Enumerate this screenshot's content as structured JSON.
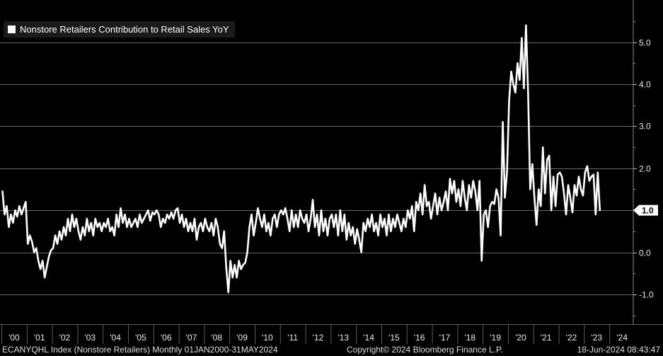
{
  "colors": {
    "background": "#000000",
    "line": "#ffffff",
    "grid": "#8a8a8a",
    "text": "#e8e8e8",
    "legend_bg": "#1a1a1a"
  },
  "footer": {
    "left": "ECANYQHL Index (Nonstore Retailers)  Monthly 01JAN2000-31MAY2024",
    "middle": "Copyright© 2024 Bloomberg Finance L.P.",
    "right": "18-Jun-2024 08:43:47"
  },
  "chart_data": {
    "type": "line",
    "title": "",
    "legend": [
      "Nonstore Retailers Contribution to Retail Sales YoY"
    ],
    "legend_position": "top-left",
    "xlabel": "",
    "ylabel": "",
    "ylim": [
      -1.5,
      6.0
    ],
    "y_ticks": [
      -1.0,
      0.0,
      1.0,
      2.0,
      3.0,
      4.0,
      5.0
    ],
    "y_tick_labels": [
      "-1.0",
      "0.0",
      "1.0",
      "2.0",
      "3.0",
      "4.0",
      "5.0"
    ],
    "x_tick_labels": [
      "'00",
      "'01",
      "'02",
      "'03",
      "'04",
      "'05",
      "'06",
      "'07",
      "'08",
      "'09",
      "'10",
      "'11",
      "'12",
      "'13",
      "'14",
      "'15",
      "'16",
      "'17",
      "'18",
      "'19",
      "'20",
      "'21",
      "'22",
      "'23",
      "'24"
    ],
    "x_start_year": 2000,
    "last_value_label": "1.0",
    "series": [
      {
        "name": "Nonstore Retailers Contribution to Retail Sales YoY",
        "start": "2000-01",
        "frequency": "monthly",
        "values": [
          1.45,
          0.9,
          1.1,
          0.6,
          0.9,
          0.7,
          1.0,
          0.85,
          1.1,
          0.9,
          1.05,
          1.2,
          0.2,
          0.4,
          0.25,
          0.0,
          0.1,
          -0.2,
          -0.4,
          -0.2,
          -0.6,
          -0.35,
          -0.1,
          0.05,
          0.1,
          0.4,
          0.2,
          0.5,
          0.3,
          0.6,
          0.4,
          0.8,
          0.5,
          0.9,
          0.6,
          0.8,
          0.5,
          0.3,
          0.6,
          0.4,
          0.8,
          0.5,
          0.7,
          0.4,
          0.8,
          0.6,
          0.7,
          0.5,
          0.7,
          0.6,
          0.8,
          0.5,
          0.6,
          0.4,
          0.9,
          0.6,
          1.05,
          0.7,
          0.9,
          0.6,
          0.8,
          0.6,
          0.7,
          0.8,
          0.6,
          0.9,
          0.7,
          0.8,
          0.9,
          1.0,
          0.75,
          0.95,
          0.9,
          1.0,
          0.9,
          0.6,
          0.8,
          0.7,
          0.9,
          0.8,
          0.95,
          0.8,
          1.0,
          1.05,
          0.7,
          0.9,
          0.6,
          0.8,
          0.5,
          0.7,
          0.5,
          0.8,
          0.3,
          0.6,
          0.7,
          0.5,
          0.8,
          0.6,
          0.5,
          0.7,
          0.4,
          0.8,
          0.6,
          0.2,
          0.1,
          0.5,
          -0.35,
          -0.95,
          -0.2,
          -0.6,
          -0.3,
          -0.6,
          -0.2,
          -0.4,
          -0.3,
          -0.25,
          0.0,
          0.6,
          0.9,
          0.4,
          0.7,
          1.05,
          0.8,
          0.6,
          0.9,
          0.5,
          0.7,
          0.4,
          0.8,
          0.9,
          0.6,
          0.9,
          1.0,
          0.9,
          1.05,
          0.8,
          0.5,
          1.0,
          0.6,
          0.9,
          0.6,
          1.0,
          0.8,
          0.7,
          0.9,
          0.5,
          0.8,
          1.25,
          0.6,
          0.9,
          0.4,
          1.0,
          0.5,
          0.8,
          0.4,
          0.8,
          0.9,
          0.6,
          0.9,
          0.4,
          1.0,
          0.5,
          0.9,
          0.3,
          0.7,
          0.4,
          0.6,
          0.2,
          0.55,
          0.3,
          0.0,
          0.7,
          0.5,
          0.8,
          0.6,
          0.9,
          0.5,
          0.7,
          0.4,
          0.9,
          0.6,
          0.8,
          0.4,
          0.9,
          0.5,
          0.8,
          0.6,
          0.9,
          0.7,
          0.5,
          0.8,
          0.6,
          1.0,
          0.8,
          1.1,
          0.5,
          1.2,
          1.0,
          1.4,
          0.9,
          1.6,
          1.1,
          1.2,
          0.8,
          1.1,
          1.4,
          0.9,
          1.3,
          1.0,
          1.2,
          1.45,
          1.0,
          1.75,
          1.4,
          1.7,
          1.2,
          1.5,
          1.1,
          1.7,
          1.3,
          1.0,
          1.6,
          1.3,
          1.7,
          1.45,
          1.0,
          1.7,
          -0.2,
          0.9,
          1.0,
          0.6,
          1.1,
          1.2,
          1.15,
          1.5,
          1.3,
          0.4,
          3.1,
          1.3,
          1.9,
          3.6,
          4.3,
          4.0,
          3.8,
          4.5,
          4.1,
          5.1,
          3.9,
          5.4,
          3.8,
          1.5,
          2.1,
          1.3,
          0.65,
          1.5,
          1.1,
          2.5,
          1.4,
          2.2,
          2.3,
          1.0,
          1.8,
          1.1,
          1.85,
          1.9,
          1.8,
          1.4,
          0.9,
          1.6,
          1.3,
          0.95,
          1.6,
          1.35,
          1.8,
          1.5,
          1.35,
          1.9,
          2.05,
          1.7,
          1.8,
          1.85,
          0.9,
          1.9,
          1.0
        ]
      }
    ]
  }
}
